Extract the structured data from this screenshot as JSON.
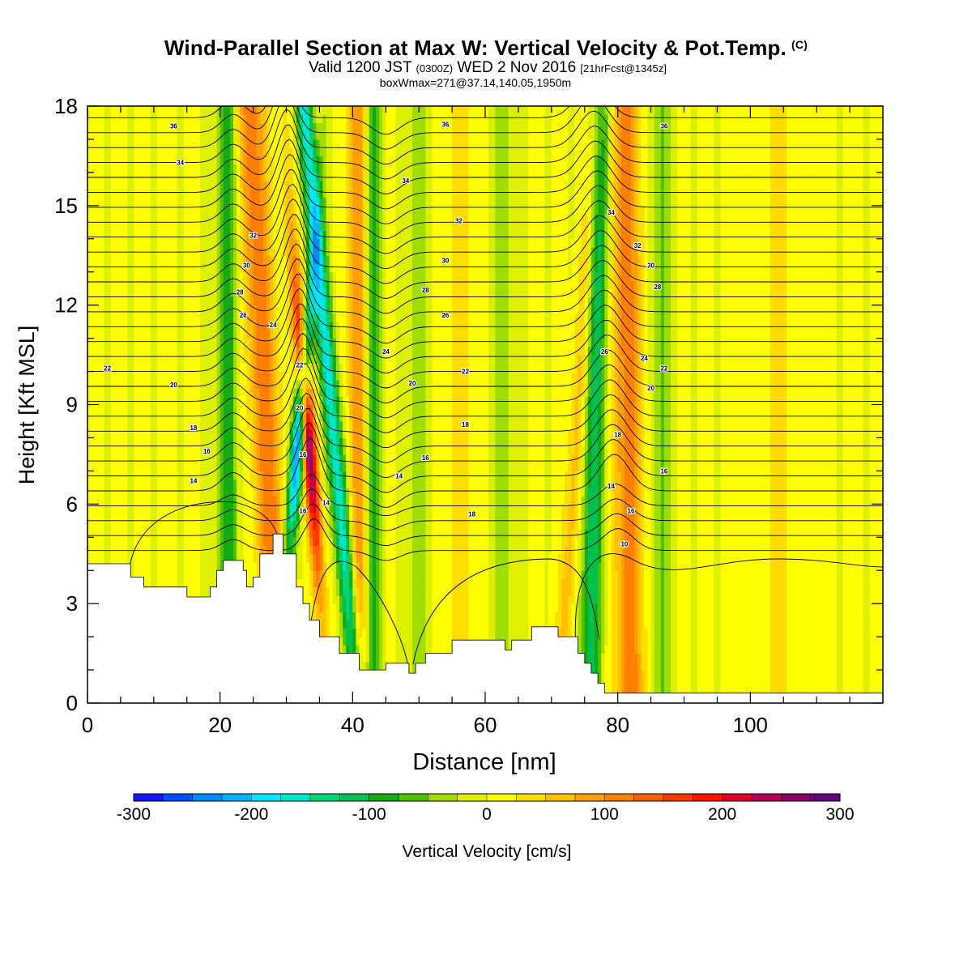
{
  "header": {
    "title": "Wind-Parallel Section at Max W: Vertical Velocity & Pot.Temp.",
    "copyright_mark": "(C)",
    "valid_prefix": "Valid 1200 JST",
    "valid_utc": "(0300Z)",
    "valid_date": "WED 2 Nov 2016",
    "forecast_info": "[21hrFcst@1345z]",
    "box_info": "boxWmax=271@37.14,140.05,1950m"
  },
  "chart_data": {
    "type": "heatmap",
    "xlabel": "Distance [nm]",
    "ylabel": "Height [Kft MSL]",
    "xlim": [
      0,
      120
    ],
    "ylim": [
      0,
      18
    ],
    "x_ticks": [
      0,
      20,
      40,
      60,
      80,
      100
    ],
    "y_ticks": [
      0,
      3,
      6,
      9,
      12,
      15,
      18
    ],
    "grid": false,
    "colorbar": {
      "label": "Vertical Velocity [cm/s]",
      "placement": "bottom",
      "range": [
        -300,
        300
      ],
      "tick_labels": [
        "-300",
        "-200",
        "-100",
        "0",
        "100",
        "200",
        "300"
      ],
      "colors": [
        "#1414ff",
        "#0050ff",
        "#0088ff",
        "#00b4ff",
        "#00e4ff",
        "#00e4c8",
        "#00d478",
        "#00c050",
        "#14aa14",
        "#50c000",
        "#a0dc00",
        "#dcf000",
        "#ffff00",
        "#ffdc00",
        "#ffc000",
        "#ffa000",
        "#ff8000",
        "#ff6000",
        "#ff3c00",
        "#ff1400",
        "#dc0028",
        "#b40050",
        "#8c0064",
        "#640078"
      ]
    },
    "contour_series": {
      "name": "Pot.Temp.",
      "levels": [
        10,
        12,
        14,
        16,
        18,
        20,
        22,
        24,
        26,
        28,
        30,
        32,
        34,
        36
      ],
      "labels": [
        {
          "text": "36",
          "x": 13,
          "y": 17.4
        },
        {
          "text": "36",
          "x": 54,
          "y": 17.45
        },
        {
          "text": "36",
          "x": 87,
          "y": 17.4
        },
        {
          "text": "34",
          "x": 14,
          "y": 16.3
        },
        {
          "text": "34",
          "x": 48,
          "y": 15.75
        },
        {
          "text": "34",
          "x": 79,
          "y": 14.8
        },
        {
          "text": "32",
          "x": 25,
          "y": 14.1
        },
        {
          "text": "32",
          "x": 56,
          "y": 14.55
        },
        {
          "text": "32",
          "x": 83,
          "y": 13.8
        },
        {
          "text": "30",
          "x": 24,
          "y": 13.2
        },
        {
          "text": "30",
          "x": 54,
          "y": 13.35
        },
        {
          "text": "30",
          "x": 85,
          "y": 13.2
        },
        {
          "text": "28",
          "x": 23,
          "y": 12.4
        },
        {
          "text": "28",
          "x": 51,
          "y": 12.45
        },
        {
          "text": "28",
          "x": 86,
          "y": 12.55
        },
        {
          "text": "26",
          "x": 23.5,
          "y": 11.7
        },
        {
          "text": "26",
          "x": 54,
          "y": 11.7
        },
        {
          "text": "26",
          "x": 78,
          "y": 10.6
        },
        {
          "text": "24",
          "x": 28,
          "y": 11.4
        },
        {
          "text": "24",
          "x": 45,
          "y": 10.6
        },
        {
          "text": "24",
          "x": 84,
          "y": 10.4
        },
        {
          "text": "22",
          "x": 3,
          "y": 10.1
        },
        {
          "text": "22",
          "x": 32,
          "y": 10.2
        },
        {
          "text": "22",
          "x": 57,
          "y": 10.0
        },
        {
          "text": "22",
          "x": 87,
          "y": 10.1
        },
        {
          "text": "20",
          "x": 13,
          "y": 9.6
        },
        {
          "text": "20",
          "x": 32,
          "y": 8.9
        },
        {
          "text": "20",
          "x": 49,
          "y": 9.65
        },
        {
          "text": "20",
          "x": 85,
          "y": 9.5
        },
        {
          "text": "18",
          "x": 16,
          "y": 8.3
        },
        {
          "text": "18",
          "x": 57,
          "y": 8.4
        },
        {
          "text": "18",
          "x": 80,
          "y": 8.1
        },
        {
          "text": "16",
          "x": 18,
          "y": 7.6
        },
        {
          "text": "16",
          "x": 32.5,
          "y": 7.5
        },
        {
          "text": "16",
          "x": 51,
          "y": 7.4
        },
        {
          "text": "16",
          "x": 87,
          "y": 7.0
        },
        {
          "text": "14",
          "x": 16,
          "y": 6.7
        },
        {
          "text": "14",
          "x": 47,
          "y": 6.85
        },
        {
          "text": "14",
          "x": 79,
          "y": 6.55
        },
        {
          "text": "14",
          "x": 36,
          "y": 6.05
        },
        {
          "text": "16",
          "x": 32.5,
          "y": 5.8
        },
        {
          "text": "18",
          "x": 58,
          "y": 5.7
        },
        {
          "text": "16",
          "x": 82,
          "y": 5.8
        },
        {
          "text": "10",
          "x": 81,
          "y": 4.8
        }
      ]
    },
    "terrain_profile_kft": [
      [
        0,
        4.2
      ],
      [
        6.5,
        4.2
      ],
      [
        6.5,
        3.8
      ],
      [
        8.5,
        3.8
      ],
      [
        8.5,
        3.5
      ],
      [
        15,
        3.5
      ],
      [
        15,
        3.2
      ],
      [
        18.5,
        3.2
      ],
      [
        18.5,
        3.5
      ],
      [
        19.5,
        3.5
      ],
      [
        19.5,
        4.0
      ],
      [
        20.5,
        4.0
      ],
      [
        20.5,
        4.3
      ],
      [
        23.5,
        4.3
      ],
      [
        23.5,
        4.0
      ],
      [
        24,
        4.0
      ],
      [
        24,
        3.5
      ],
      [
        25,
        3.5
      ],
      [
        25,
        3.8
      ],
      [
        26,
        3.8
      ],
      [
        26,
        4.5
      ],
      [
        28,
        4.5
      ],
      [
        28,
        5.1
      ],
      [
        29.5,
        5.1
      ],
      [
        29.5,
        4.5
      ],
      [
        31.5,
        4.5
      ],
      [
        31.5,
        3.5
      ],
      [
        32.5,
        3.5
      ],
      [
        32.5,
        3.0
      ],
      [
        33.5,
        3.0
      ],
      [
        33.5,
        2.5
      ],
      [
        35,
        2.5
      ],
      [
        35,
        2.0
      ],
      [
        38,
        2.0
      ],
      [
        38,
        1.5
      ],
      [
        41,
        1.5
      ],
      [
        41,
        1.0
      ],
      [
        45,
        1.0
      ],
      [
        45,
        1.2
      ],
      [
        48.5,
        1.2
      ],
      [
        48.5,
        0.9
      ],
      [
        49.5,
        0.9
      ],
      [
        49.5,
        1.2
      ],
      [
        51,
        1.2
      ],
      [
        51,
        1.5
      ],
      [
        55,
        1.5
      ],
      [
        55,
        1.9
      ],
      [
        63,
        1.9
      ],
      [
        63,
        1.6
      ],
      [
        64,
        1.6
      ],
      [
        64,
        1.9
      ],
      [
        67,
        1.9
      ],
      [
        67,
        2.3
      ],
      [
        71,
        2.3
      ],
      [
        71,
        2.0
      ],
      [
        74,
        2.0
      ],
      [
        74,
        1.5
      ],
      [
        75,
        1.5
      ],
      [
        75,
        1.2
      ],
      [
        76,
        1.2
      ],
      [
        76,
        0.9
      ],
      [
        77,
        0.9
      ],
      [
        77,
        0.6
      ],
      [
        78,
        0.6
      ],
      [
        78,
        0.3
      ],
      [
        80,
        0.3
      ],
      [
        80,
        0.3
      ],
      [
        120,
        0.3
      ]
    ]
  }
}
